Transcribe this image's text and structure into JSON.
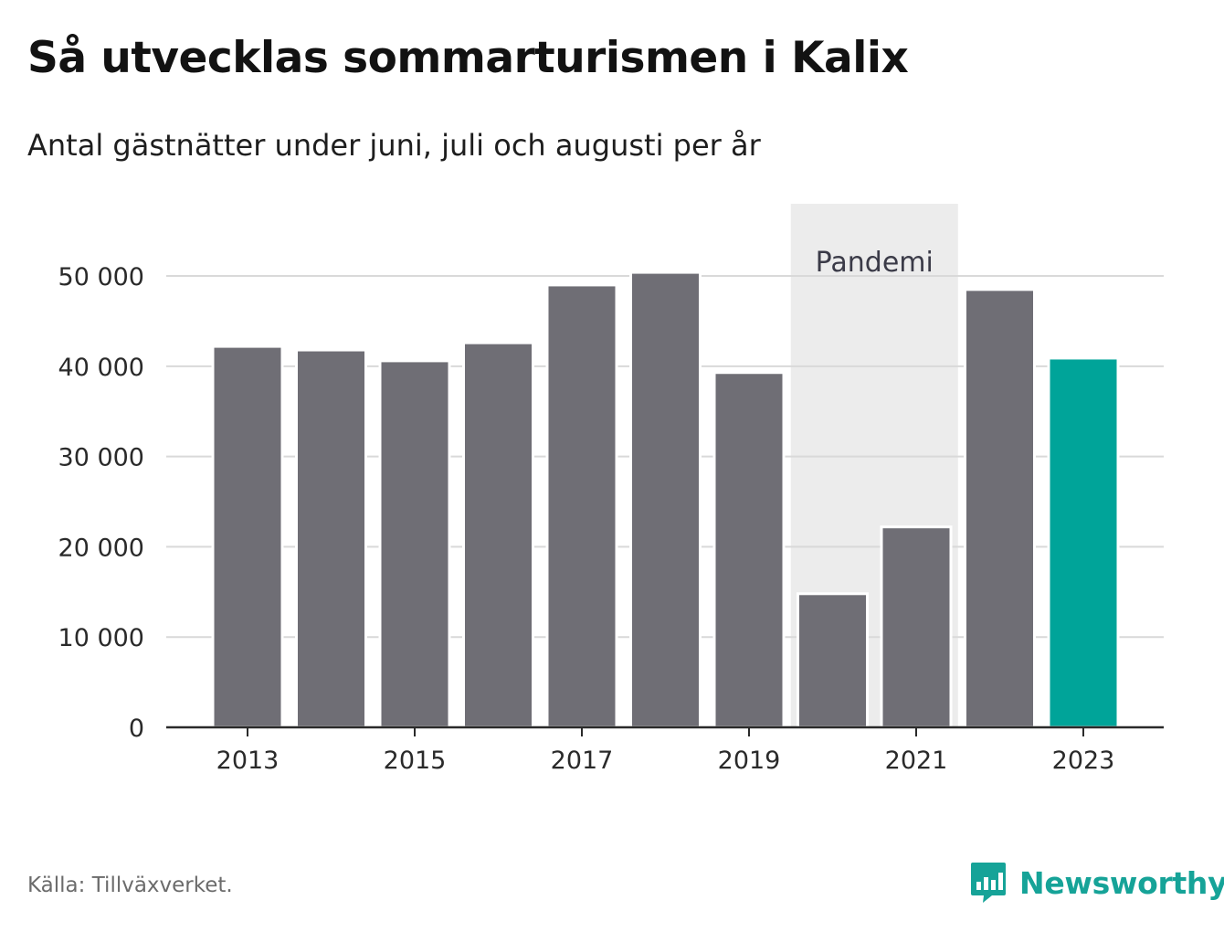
{
  "title": "Så utvecklas sommarturismen i Kalix",
  "subtitle": "Antal gästnätter under juni, juli och augusti per år",
  "source": "Källa: Tillväxverket.",
  "brand": {
    "name": "Newsworthy",
    "icon": "newsworthy-logo-icon",
    "color": "#16a398"
  },
  "chart_data": {
    "type": "bar",
    "categories": [
      "2013",
      "2014",
      "2015",
      "2016",
      "2017",
      "2018",
      "2019",
      "2020",
      "2021",
      "2022",
      "2023"
    ],
    "values": [
      42200,
      41800,
      40600,
      42600,
      49000,
      50400,
      39300,
      14800,
      22200,
      48500,
      40900
    ],
    "ylim": [
      0,
      58000
    ],
    "yticks": [
      0,
      10000,
      20000,
      30000,
      40000,
      50000
    ],
    "ytick_labels": [
      "0",
      "10 000",
      "20 000",
      "30 000",
      "40 000",
      "50 000"
    ],
    "xtick_labels": [
      "2013",
      "2015",
      "2017",
      "2019",
      "2021",
      "2023"
    ],
    "grid": true,
    "colors": {
      "default": "#6f6e75",
      "highlight": "#00a499",
      "highlight_category": "2023"
    },
    "annotation": {
      "label": "Pandemi",
      "from": "2020",
      "to": "2021",
      "color": "#ececec"
    }
  }
}
